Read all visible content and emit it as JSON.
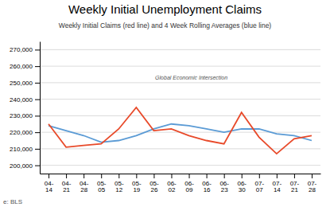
{
  "chart_data": {
    "type": "line",
    "title": "Weekly Initial Unemployment Claims",
    "subtitle": "Weekly Initial Claims (red line) and 4 Week Rolling Averages (blue line)",
    "source": "e: BLS",
    "annotations": [
      "Global Economic Intersection"
    ],
    "categories": [
      "04-\n14",
      "04-\n21",
      "04-\n28",
      "05-\n05",
      "05-\n12",
      "05-\n19",
      "05-\n26",
      "06-\n02",
      "06-\n09",
      "06-\n16",
      "06-\n23",
      "06-\n30",
      "07-\n07",
      "07-\n14",
      "07-\n21",
      "07-\n28"
    ],
    "series": [
      {
        "color": "#5b9bd5",
        "values": [
          224000,
          221000,
          218000,
          214000,
          215000,
          218000,
          222000,
          225000,
          224000,
          222000,
          220000,
          222000,
          222000,
          219000,
          218000,
          215000
        ]
      },
      {
        "color": "#e84a2a",
        "values": [
          225000,
          211000,
          212000,
          213000,
          222000,
          235000,
          221000,
          222000,
          218000,
          215000,
          213000,
          232000,
          217000,
          207000,
          216000,
          218000
        ]
      }
    ],
    "ylim": [
      195000,
      275000
    ],
    "yticks": [
      {
        "value": 200000,
        "label": "200,000"
      },
      {
        "value": 210000,
        "label": "210,000"
      },
      {
        "value": 220000,
        "label": "220,000"
      },
      {
        "value": 230000,
        "label": "230,000"
      },
      {
        "value": 240000,
        "label": "240,000"
      },
      {
        "value": 250000,
        "label": "250,000"
      },
      {
        "value": 260000,
        "label": "260,000"
      },
      {
        "value": 270000,
        "label": "270,000"
      }
    ],
    "grid": true
  }
}
